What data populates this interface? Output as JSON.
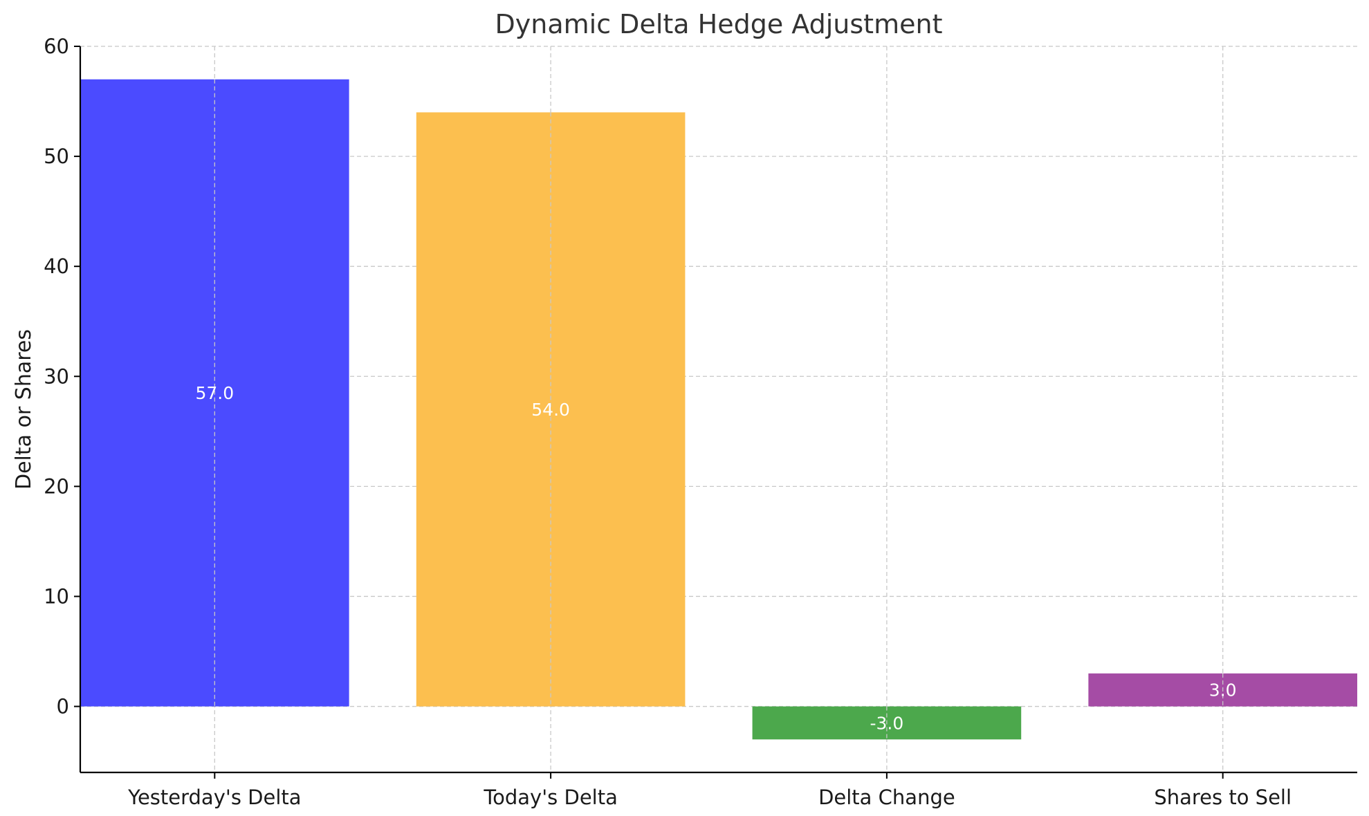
{
  "chart_data": {
    "type": "bar",
    "title": "Dynamic Delta Hedge Adjustment",
    "xlabel": "",
    "ylabel": "Delta or Shares",
    "categories": [
      "Yesterday's Delta",
      "Today's Delta",
      "Delta Change",
      "Shares to Sell"
    ],
    "values": [
      57.0,
      54.0,
      -3.0,
      3.0
    ],
    "value_labels": [
      "57.0",
      "54.0",
      "-3.0",
      "3.0"
    ],
    "colors": [
      "#4b4bff",
      "#fcbf4f",
      "#4ca84c",
      "#a54ca5"
    ],
    "ylim": [
      -6,
      60
    ],
    "yticks": [
      0,
      10,
      20,
      30,
      40,
      50,
      60
    ],
    "grid": true,
    "legend": "none"
  }
}
